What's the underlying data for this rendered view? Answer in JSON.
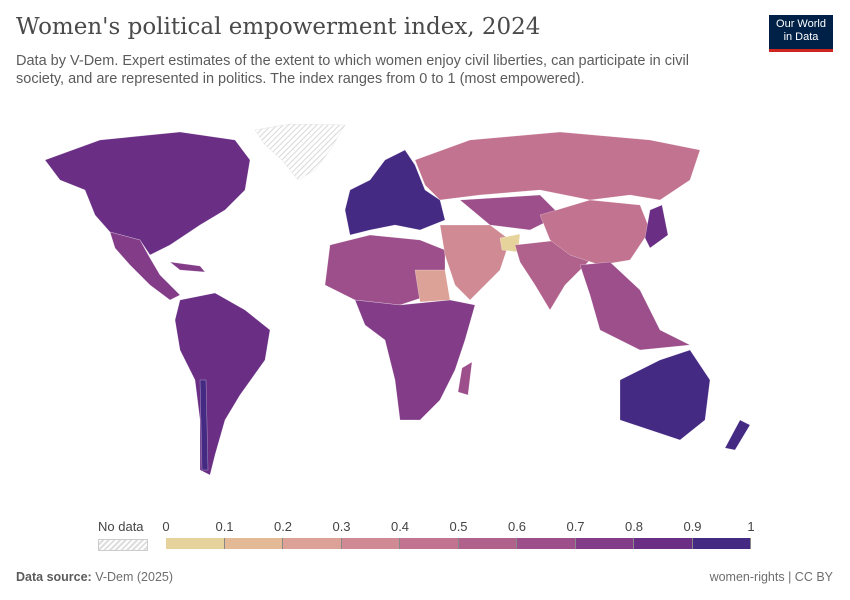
{
  "title": "Women's political empowerment index, 2024",
  "subtitle": "Data by V-Dem. Expert estimates of the extent to which women enjoy civil liberties, can participate in civil society, and are represented in politics. The index ranges from 0 to 1 (most empowered).",
  "logo": {
    "line1": "Our World",
    "line2": "in Data"
  },
  "legend": {
    "no_data": "No data",
    "ticks": [
      "0",
      "0.1",
      "0.2",
      "0.3",
      "0.4",
      "0.5",
      "0.6",
      "0.7",
      "0.8",
      "0.9",
      "1"
    ],
    "colors": [
      "#e6d39b",
      "#e3b996",
      "#dca197",
      "#d08a94",
      "#c2738f",
      "#b1628c",
      "#9c4f8a",
      "#833d88",
      "#6a2f85",
      "#452a84"
    ]
  },
  "footer": {
    "source_label": "Data source:",
    "source": "V-Dem (2025)",
    "right": "women-rights | CC BY"
  }
}
